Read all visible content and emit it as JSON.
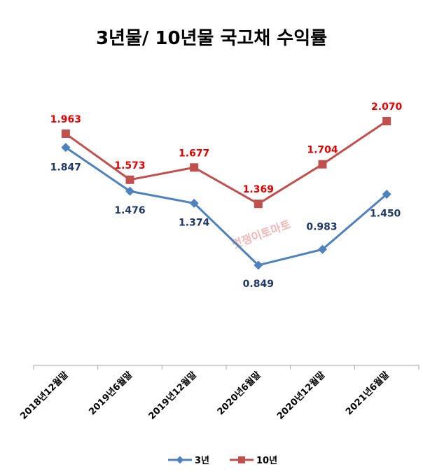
{
  "chart_data": {
    "type": "line",
    "title": "3년물/ 10년물 국고채 수익률",
    "categories": [
      "2018년12월말",
      "2019년6월말",
      "2019년12월말",
      "2020년6월말",
      "2020년12월말",
      "2021년6월말"
    ],
    "series": [
      {
        "name": "3년",
        "color": "#4F81BD",
        "label_color": "#1F3864",
        "marker": "diamond",
        "values": [
          1.847,
          1.476,
          1.374,
          0.849,
          0.983,
          1.45
        ]
      },
      {
        "name": "10년",
        "color": "#C0504D",
        "label_color": "#E00000",
        "marker": "square",
        "values": [
          1.963,
          1.573,
          1.677,
          1.369,
          1.704,
          2.07
        ]
      }
    ],
    "ylim": [
      0,
      2.3
    ],
    "grid": false,
    "legend": "bottom",
    "watermark": "멋쟁이토마토"
  }
}
